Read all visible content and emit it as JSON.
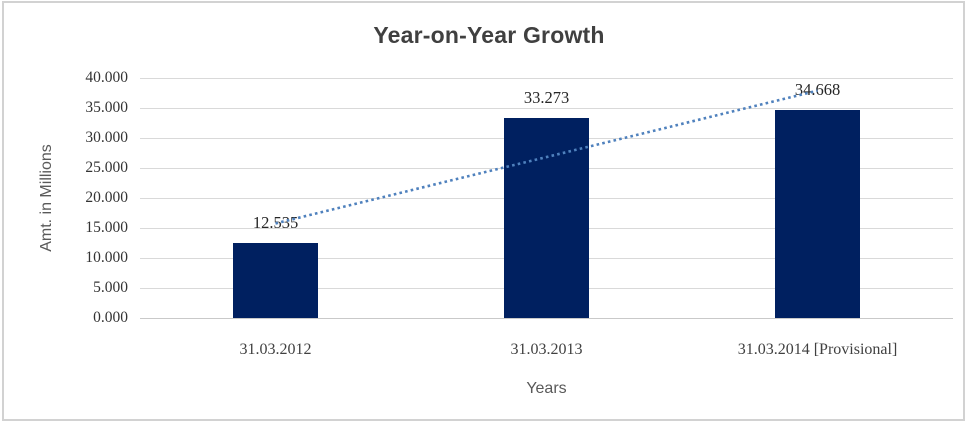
{
  "chart_data": {
    "type": "bar",
    "title": "Year-on-Year Growth",
    "xlabel": "Years",
    "ylabel": "Amt. in Millions",
    "categories": [
      "31.03.2012",
      "31.03.2013",
      "31.03.2014 [Provisional]"
    ],
    "values": [
      12.535,
      33.273,
      34.668
    ],
    "data_labels": [
      "12.535",
      "33.273",
      "34.668"
    ],
    "ylim": [
      0,
      40
    ],
    "ytick_step": 5,
    "ytick_labels": [
      "0.000",
      "5.000",
      "10.000",
      "15.000",
      "20.000",
      "25.000",
      "30.000",
      "35.000",
      "40.000"
    ],
    "grid": true,
    "legend": "none",
    "trendline": {
      "type": "linear",
      "style": "dotted",
      "color": "#4F81BD"
    },
    "colors": {
      "bar": "#002060",
      "gridline": "#D9D9D9",
      "axis_line": "#C9C9C9",
      "chart_border": "#D2D2D2",
      "title_text": "#404040",
      "tick_text": "#333333",
      "axis_title_text": "#595959",
      "background": "#FFFFFF"
    }
  }
}
